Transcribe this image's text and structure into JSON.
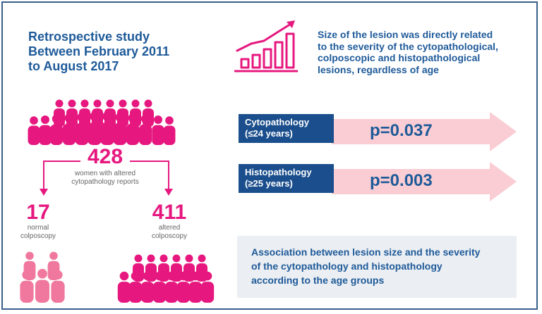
{
  "study": {
    "line1": "Retrospective study",
    "line2": "Between February 2011",
    "line3": "to August 2017"
  },
  "lesion": {
    "line1": "Size of the lesion was directly related",
    "line2": "to the severity of the cytopathological,",
    "line3": "colposcopic and histopathological",
    "line4": "lesions, regardless of age"
  },
  "total": {
    "number": "428",
    "caption_line1": "women with altered",
    "caption_line2": "cytopathology reports"
  },
  "normal": {
    "number": "17",
    "caption_line1": "normal",
    "caption_line2": "colposcopy"
  },
  "altered": {
    "number": "411",
    "caption_line1": "altered",
    "caption_line2": "colposcopy"
  },
  "results": [
    {
      "label_line1": "Cytopathology",
      "label_line2": "(≤24 years)",
      "pvalue": "p=0.037"
    },
    {
      "label_line1": "Histopathology",
      "label_line2": "(≥25 years)",
      "pvalue": "p=0.003"
    }
  ],
  "association": {
    "line1": "Association between lesion size and the severity",
    "line2": "of the cytopathology and histopathology",
    "line3": "according to the age groups"
  },
  "colors": {
    "brand_blue": "#1e5a99",
    "label_blue": "#1a4e8c",
    "magenta": "#e6187f",
    "light_pink": "#f0789e",
    "arrow_pink": "#f9cdd3",
    "grey_box": "#ebeef2",
    "border": "#3a5f8c"
  },
  "icons": {
    "growth_chart": "bar-chart-growth-icon",
    "crowd_large": "people-crowd-icon",
    "crowd_small": "people-small-group-icon",
    "arrows": "branch-arrow-icon"
  }
}
